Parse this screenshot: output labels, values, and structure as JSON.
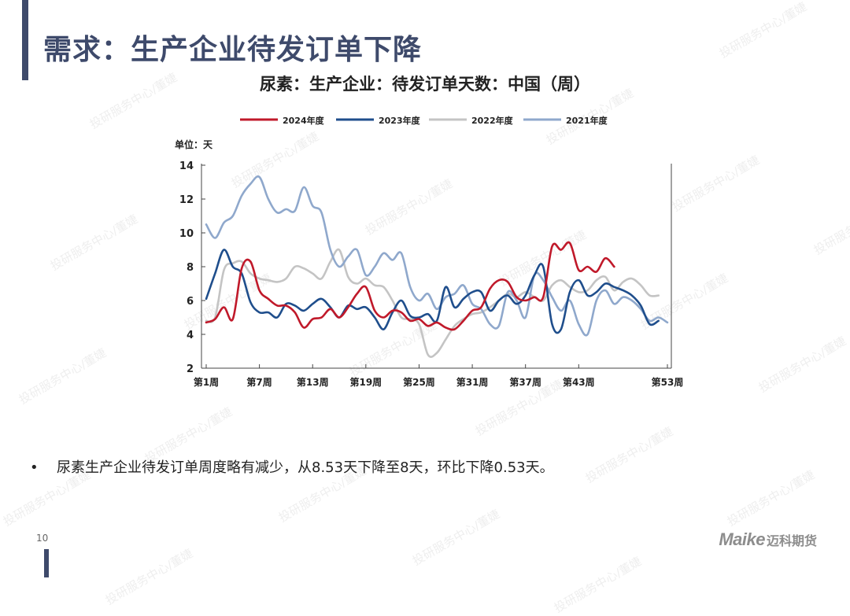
{
  "slide": {
    "title": "需求：生产企业待发订单下降",
    "page_number": "10",
    "bullet": "尿素生产企业待发订单周度略有减少，从8.53天下降至8天，环比下降0.53天。",
    "bullet_marker": "•",
    "watermark_text": "投研服务中心/董婕",
    "logo": {
      "mark": "Maike",
      "name": "迈科期货"
    }
  },
  "chart_data": {
    "type": "line",
    "title": "尿素：生产企业：待发订单天数：中国（周）",
    "unit_label": "单位：天",
    "xlabel": "",
    "ylabel": "",
    "x_range": [
      1,
      53
    ],
    "ylim": [
      2,
      14
    ],
    "yticks": [
      2,
      4,
      6,
      8,
      10,
      12,
      14
    ],
    "xticks": [
      {
        "week": 1,
        "label": "第1周"
      },
      {
        "week": 7,
        "label": "第7周"
      },
      {
        "week": 13,
        "label": "第13周"
      },
      {
        "week": 19,
        "label": "第19周"
      },
      {
        "week": 25,
        "label": "第25周"
      },
      {
        "week": 31,
        "label": "第31周"
      },
      {
        "week": 37,
        "label": "第37周"
      },
      {
        "week": 43,
        "label": "第43周"
      },
      {
        "week": 53,
        "label": "第53周"
      }
    ],
    "legend_position": "top",
    "grid": false,
    "series": [
      {
        "name": "2024年度",
        "color": "#c0192a",
        "x": [
          1,
          2,
          3,
          4,
          5,
          6,
          7,
          8,
          9,
          10,
          11,
          12,
          13,
          14,
          15,
          16,
          17,
          18,
          19,
          20,
          21,
          22,
          23,
          24,
          25,
          26,
          27,
          28,
          29,
          30,
          31,
          32,
          33,
          34,
          35,
          36,
          37,
          38,
          39,
          40,
          41,
          42,
          43,
          44,
          45,
          46,
          47
        ],
        "y": [
          4.7,
          4.9,
          5.6,
          4.9,
          7.9,
          8.3,
          6.6,
          6.1,
          5.7,
          5.7,
          5.3,
          4.4,
          4.9,
          5.0,
          5.5,
          5.0,
          5.6,
          6.4,
          6.8,
          5.4,
          5.0,
          5.4,
          5.3,
          4.8,
          4.9,
          4.5,
          4.7,
          4.4,
          4.3,
          4.8,
          5.4,
          5.6,
          6.7,
          7.2,
          7.1,
          6.2,
          6.0,
          6.2,
          6.2,
          9.2,
          9.0,
          9.4,
          7.8,
          8.0,
          7.7,
          8.5,
          8.0
        ]
      },
      {
        "name": "2023年度",
        "color": "#1f4e8c",
        "x": [
          1,
          2,
          3,
          4,
          5,
          6,
          7,
          8,
          9,
          10,
          11,
          12,
          13,
          14,
          15,
          16,
          17,
          18,
          19,
          20,
          21,
          22,
          23,
          24,
          25,
          26,
          27,
          28,
          29,
          30,
          31,
          32,
          33,
          34,
          35,
          36,
          37,
          38,
          39,
          40,
          41,
          42,
          43,
          44,
          45,
          46,
          47,
          48,
          49,
          50,
          51,
          52
        ],
        "y": [
          6.1,
          7.6,
          9.0,
          8.0,
          7.6,
          5.9,
          5.3,
          5.3,
          5.0,
          5.8,
          5.7,
          5.4,
          5.8,
          6.1,
          5.6,
          5.0,
          5.7,
          5.5,
          5.6,
          5.0,
          4.3,
          5.3,
          6.0,
          5.1,
          5.0,
          5.2,
          4.8,
          6.8,
          5.6,
          6.1,
          6.5,
          6.5,
          5.4,
          6.0,
          6.3,
          5.8,
          6.3,
          7.5,
          8.0,
          4.6,
          4.3,
          6.5,
          7.2,
          6.3,
          6.5,
          7.0,
          6.8,
          6.6,
          6.3,
          5.7,
          4.6,
          4.8
        ]
      },
      {
        "name": "2022年度",
        "color": "#c4c4c4",
        "x": [
          1,
          2,
          3,
          4,
          5,
          6,
          7,
          8,
          9,
          10,
          11,
          12,
          13,
          14,
          15,
          16,
          17,
          18,
          19,
          20,
          21,
          22,
          23,
          24,
          25,
          26,
          27,
          28,
          29,
          30,
          31,
          32,
          33,
          34,
          35,
          36,
          37,
          38,
          39,
          40,
          41,
          42,
          43,
          44,
          45,
          46,
          47,
          48,
          49,
          50,
          51,
          52
        ],
        "y": [
          4.8,
          5.0,
          7.8,
          8.2,
          8.3,
          7.6,
          7.3,
          7.2,
          7.1,
          7.3,
          8.0,
          7.9,
          7.6,
          7.3,
          8.3,
          9.0,
          7.4,
          7.0,
          7.3,
          6.9,
          6.8,
          6.0,
          5.0,
          4.9,
          4.6,
          2.8,
          2.9,
          3.7,
          4.5,
          4.9,
          5.2,
          5.3,
          5.6,
          6.0,
          6.4,
          6.2,
          6.5,
          6.2,
          6.0,
          6.9,
          7.2,
          6.8,
          6.5,
          6.6,
          7.2,
          7.4,
          6.6,
          7.1,
          7.3,
          6.9,
          6.3,
          6.3
        ]
      },
      {
        "name": "2021年度",
        "color": "#8fa8cc",
        "x": [
          1,
          2,
          3,
          4,
          5,
          6,
          7,
          8,
          9,
          10,
          11,
          12,
          13,
          14,
          15,
          16,
          17,
          18,
          19,
          20,
          21,
          22,
          23,
          24,
          25,
          26,
          27,
          28,
          29,
          30,
          31,
          32,
          33,
          34,
          35,
          36,
          37,
          38,
          39,
          40,
          41,
          42,
          43,
          44,
          45,
          46,
          47,
          48,
          49,
          50,
          51,
          52,
          53
        ],
        "y": [
          10.5,
          9.7,
          10.6,
          11.0,
          12.2,
          12.9,
          13.3,
          12.0,
          11.2,
          11.4,
          11.3,
          12.7,
          11.6,
          11.2,
          9.0,
          8.0,
          8.6,
          9.0,
          7.5,
          8.0,
          8.8,
          8.4,
          8.8,
          6.8,
          6.0,
          6.4,
          5.5,
          6.2,
          6.4,
          6.9,
          5.8,
          5.5,
          4.6,
          4.5,
          6.5,
          6.0,
          5.0,
          7.5,
          7.2,
          6.2,
          5.4,
          6.0,
          4.6,
          4.0,
          6.0,
          6.6,
          5.8,
          6.2,
          6.0,
          5.5,
          4.8,
          5.0,
          4.7
        ]
      }
    ]
  }
}
